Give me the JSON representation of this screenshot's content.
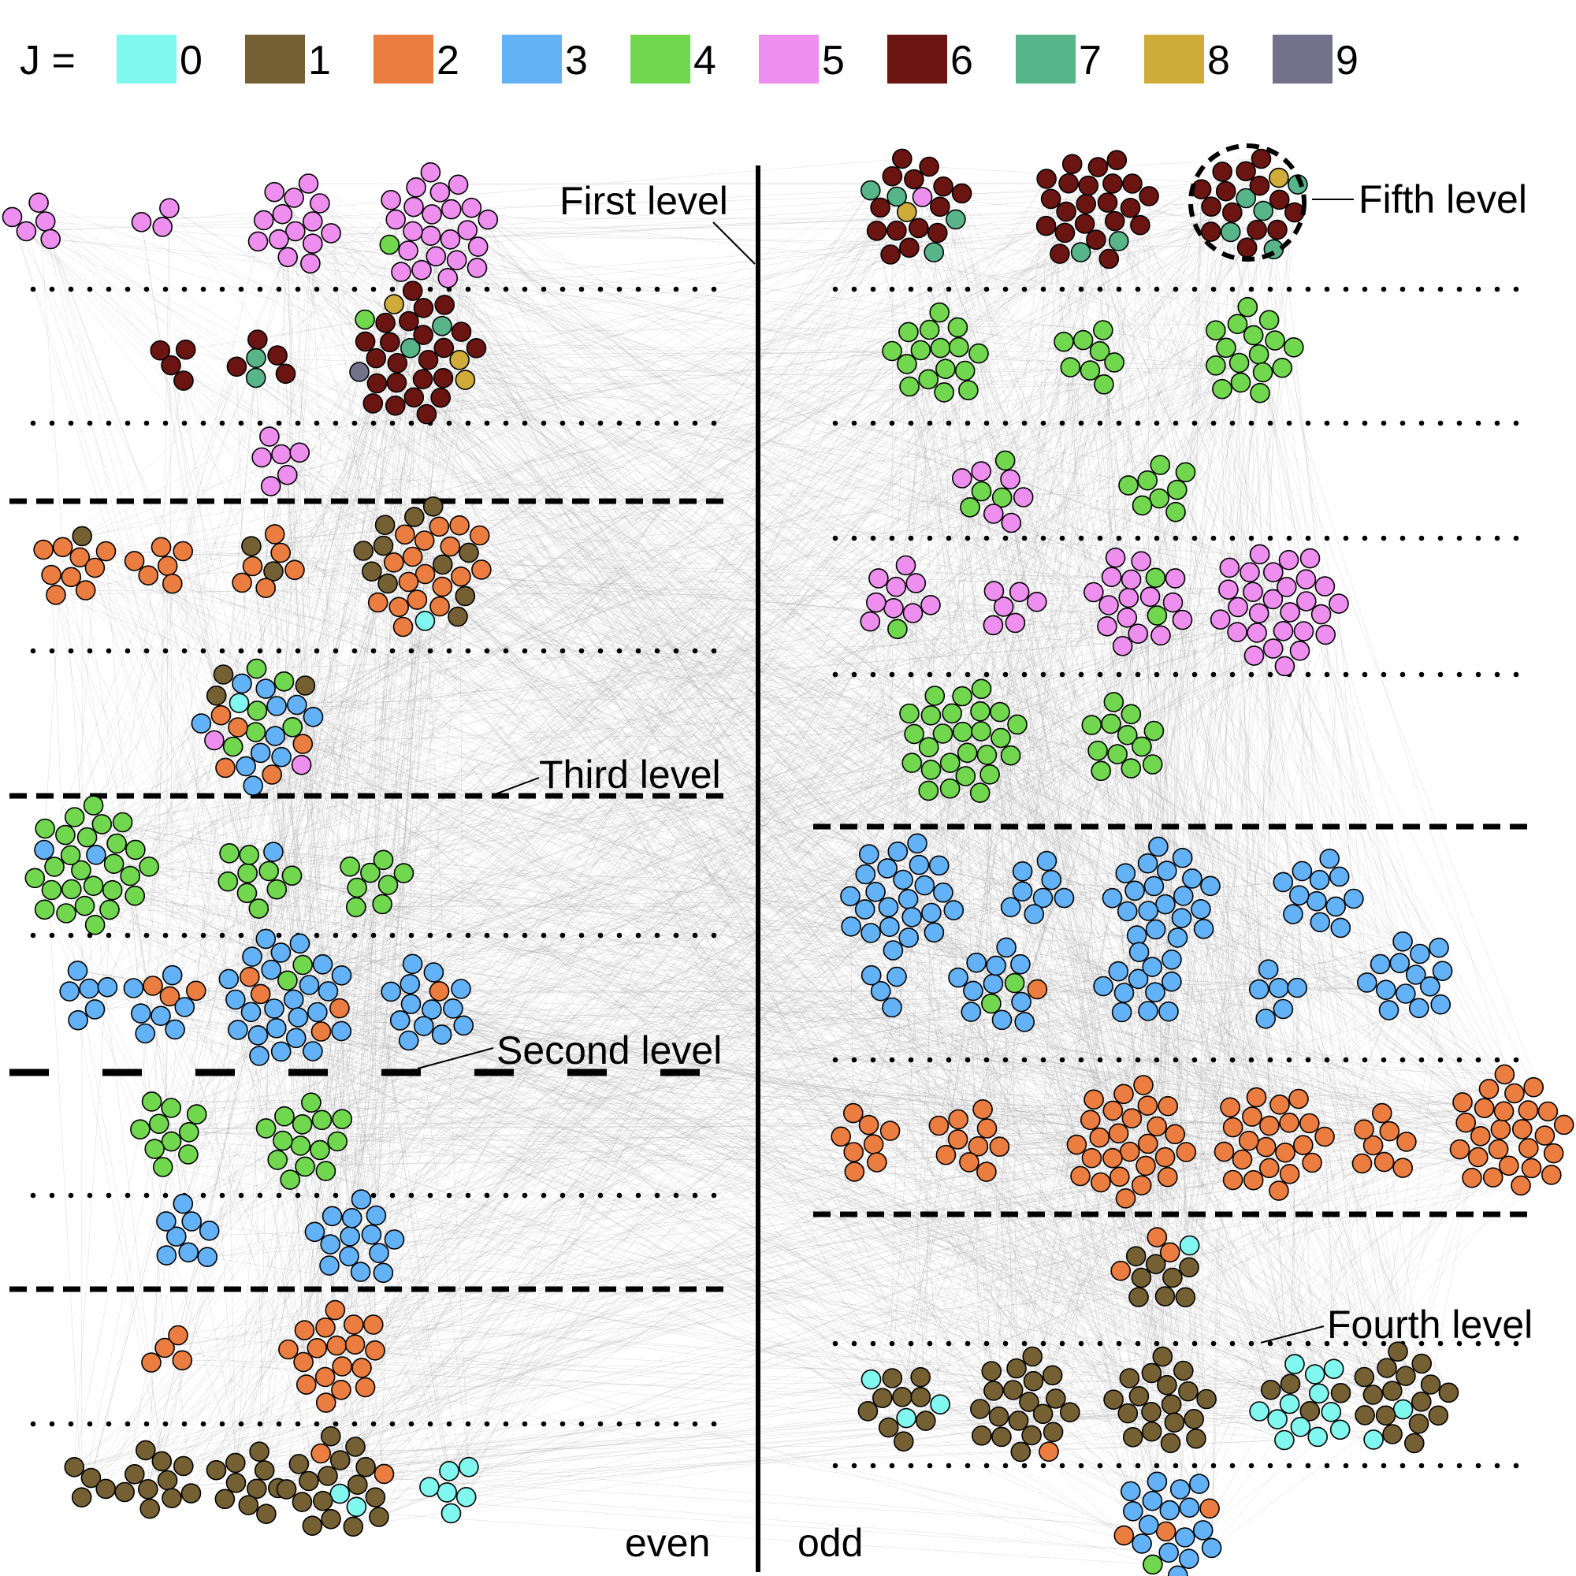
{
  "legend": {
    "prefix": "J =",
    "items": [
      {
        "label": "0",
        "color": "#80f8f0"
      },
      {
        "label": "1",
        "color": "#756033"
      },
      {
        "label": "2",
        "color": "#ec7d41"
      },
      {
        "label": "3",
        "color": "#63b1f6"
      },
      {
        "label": "4",
        "color": "#70d74e"
      },
      {
        "label": "5",
        "color": "#ee8ff0"
      },
      {
        "label": "6",
        "color": "#6a1512"
      },
      {
        "label": "7",
        "color": "#58b489"
      },
      {
        "label": "8",
        "color": "#cfac3a"
      },
      {
        "label": "9",
        "color": "#74728b"
      }
    ]
  },
  "annotations": {
    "first": "First level",
    "second": "Second level",
    "third": "Third level",
    "fourth": "Fourth level",
    "fifth": "Fifth level"
  },
  "sides": {
    "even": "even",
    "odd": "odd"
  }
}
